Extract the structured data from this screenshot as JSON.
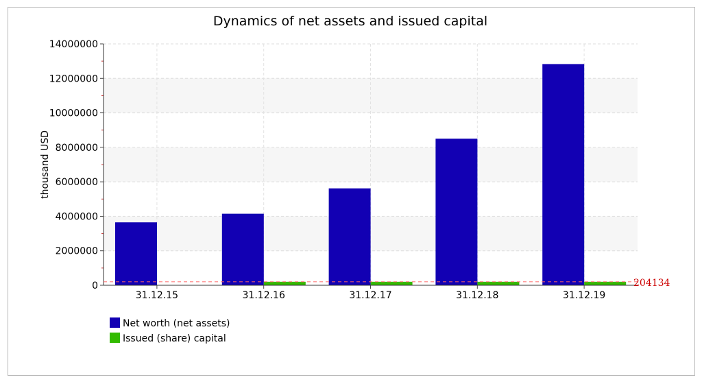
{
  "chart_data": {
    "type": "bar",
    "title": "Dynamics of net assets and issued capital",
    "ylabel": "thousand USD",
    "xlabel": "",
    "categories": [
      "31.12.15",
      "31.12.16",
      "31.12.17",
      "31.12.18",
      "31.12.19"
    ],
    "series": [
      {
        "name": "Net worth (net assets)",
        "color": "#1200b3",
        "values": [
          3650000,
          4150000,
          5620000,
          8500000,
          12830000
        ]
      },
      {
        "name": "Issued (share) capital",
        "color": "#33bb00",
        "values": [
          0,
          204134,
          204134,
          204134,
          204134
        ]
      }
    ],
    "ylim": [
      0,
      14000000
    ],
    "yticks": [
      "0",
      "2000000",
      "4000000",
      "6000000",
      "8000000",
      "10000000",
      "12000000",
      "14000000"
    ],
    "reference_line": {
      "value": 204134,
      "label": "204134",
      "color": "#ff6666"
    },
    "grid": true,
    "legend_position": "bottom-left"
  }
}
